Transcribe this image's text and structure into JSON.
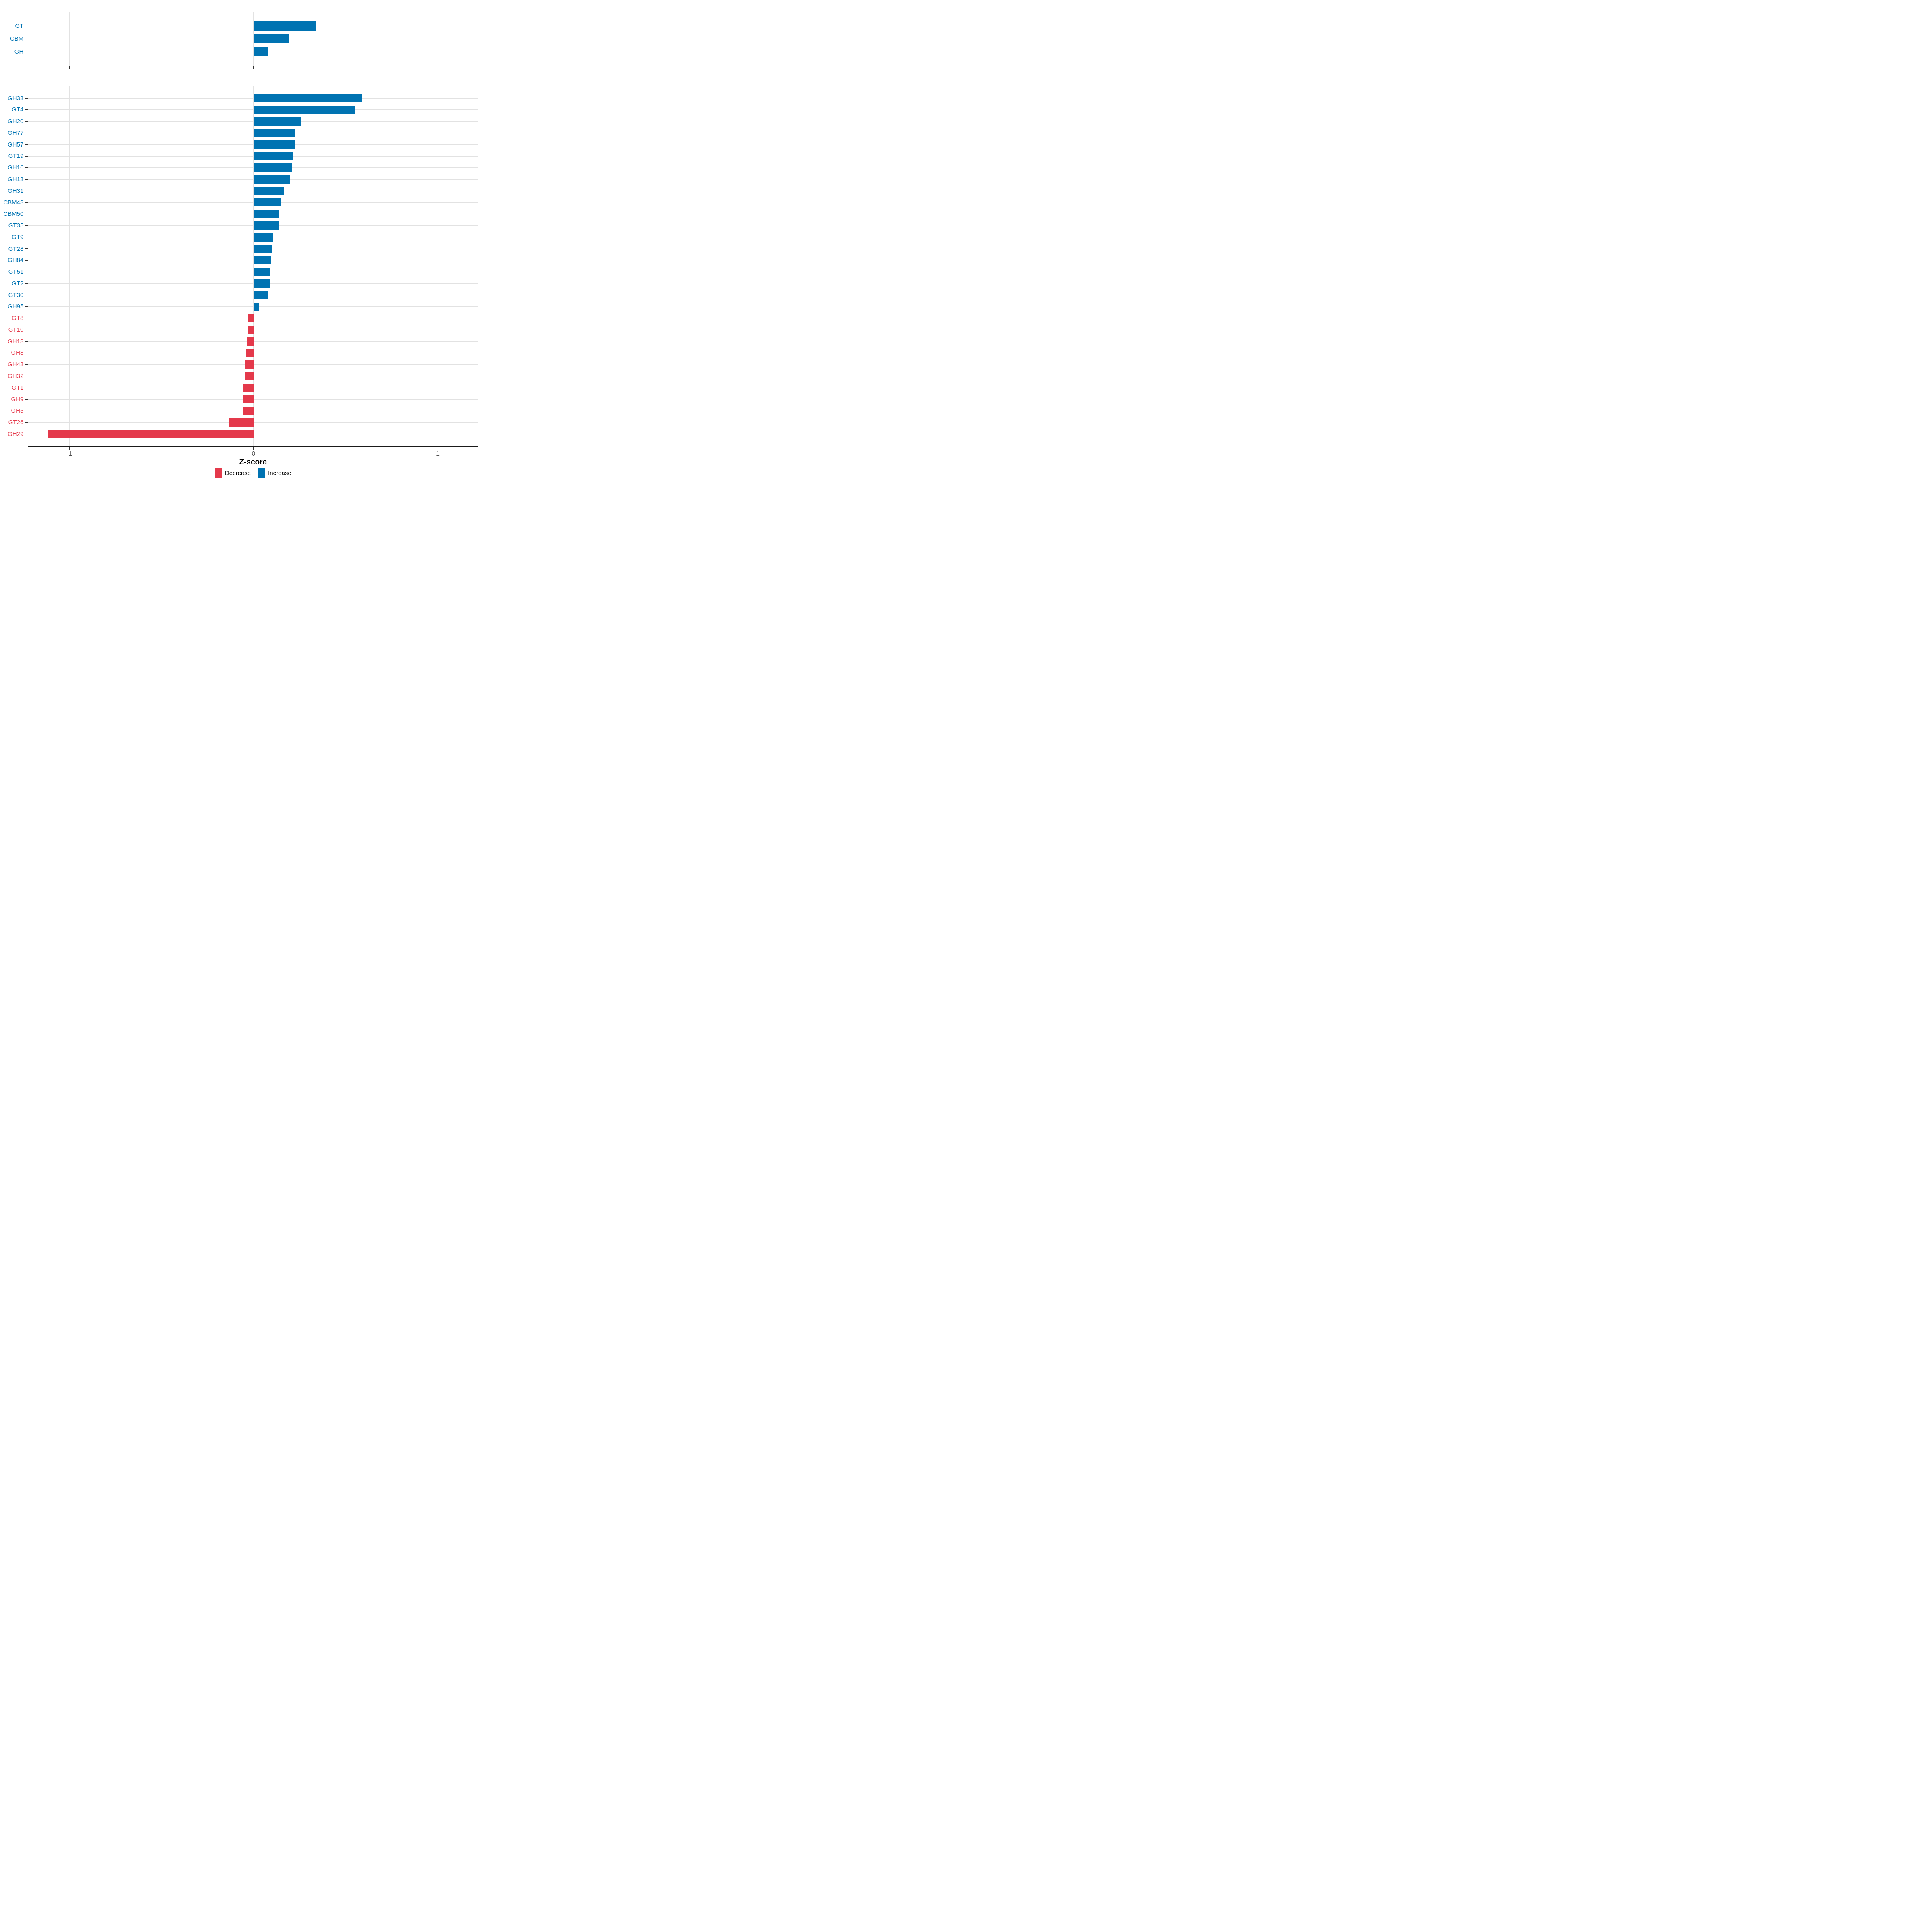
{
  "axis": {
    "label": "Z-score",
    "ticks": [
      -1,
      0,
      1
    ],
    "tick_labels": [
      "-1",
      "0",
      "1"
    ],
    "range": [
      -1.225,
      1.22
    ]
  },
  "legend": {
    "items": [
      {
        "label": "Decrease",
        "color": "#e4394b"
      },
      {
        "label": "Increase",
        "color": "#0073b2"
      }
    ]
  },
  "colors": {
    "increase": "#0073b2",
    "decrease": "#e4394b",
    "gridline": "#e2e2e2",
    "panel_border": "#1a1a1a",
    "tick": "#333333",
    "axis_text": "#4d4d4d",
    "axis_title": "#000000",
    "background": "#ffffff"
  },
  "chart_data": [
    {
      "type": "bar",
      "orientation": "horizontal",
      "panel": "cazyme-classes",
      "title": "",
      "xlabel": "Z-score",
      "xlim": [
        -1.225,
        1.22
      ],
      "grid": true,
      "legend_position": "bottom",
      "categories": [
        "GT",
        "CBM",
        "GH"
      ],
      "values": [
        0.337,
        0.191,
        0.082
      ],
      "groups": [
        "Increase",
        "Increase",
        "Increase"
      ]
    },
    {
      "type": "bar",
      "orientation": "horizontal",
      "panel": "cazyme-families",
      "title": "",
      "xlabel": "Z-score",
      "xlim": [
        -1.225,
        1.22
      ],
      "grid": true,
      "legend_position": "bottom",
      "categories": [
        "GH33",
        "GT4",
        "GH20",
        "GH77",
        "GH57",
        "GT19",
        "GH16",
        "GH13",
        "GH31",
        "CBM48",
        "CBM50",
        "GT35",
        "GT9",
        "GT28",
        "GH84",
        "GT51",
        "GT2",
        "GT30",
        "GH95",
        "GT8",
        "GT10",
        "GH18",
        "GH3",
        "GH43",
        "GH32",
        "GT1",
        "GH9",
        "GH5",
        "GT26",
        "GH29"
      ],
      "values": [
        0.59,
        0.55,
        0.26,
        0.223,
        0.222,
        0.215,
        0.209,
        0.2,
        0.167,
        0.15,
        0.141,
        0.139,
        0.108,
        0.1,
        0.096,
        0.091,
        0.088,
        0.079,
        0.028,
        -0.032,
        -0.033,
        -0.034,
        -0.044,
        -0.047,
        -0.048,
        -0.056,
        -0.057,
        -0.058,
        -0.135,
        -1.115
      ],
      "groups": [
        "Increase",
        "Increase",
        "Increase",
        "Increase",
        "Increase",
        "Increase",
        "Increase",
        "Increase",
        "Increase",
        "Increase",
        "Increase",
        "Increase",
        "Increase",
        "Increase",
        "Increase",
        "Increase",
        "Increase",
        "Increase",
        "Increase",
        "Decrease",
        "Decrease",
        "Decrease",
        "Decrease",
        "Decrease",
        "Decrease",
        "Decrease",
        "Decrease",
        "Decrease",
        "Decrease",
        "Decrease"
      ]
    }
  ]
}
